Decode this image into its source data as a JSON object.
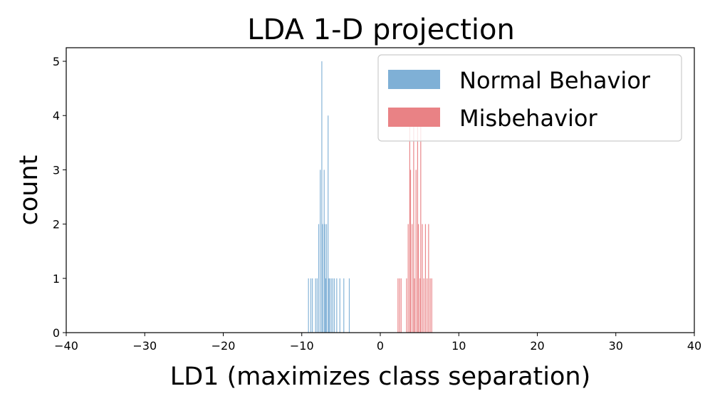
{
  "chart_data": {
    "type": "histogram",
    "title": "LDA 1-D projection",
    "xlabel": "LD1 (maximizes class separation)",
    "ylabel": "count",
    "xlim": [
      -40,
      40
    ],
    "ylim": [
      0,
      5.25
    ],
    "xticks": [
      -40,
      -30,
      -20,
      -10,
      0,
      10,
      20,
      30,
      40
    ],
    "yticks": [
      0,
      1,
      2,
      3,
      4,
      5
    ],
    "bin_width": 0.1,
    "legend_position": "upper right",
    "grid": false,
    "series": [
      {
        "name": "Normal Behavior",
        "color": "#7fb0d6",
        "bars": [
          {
            "x": -9.2,
            "count": 1
          },
          {
            "x": -8.9,
            "count": 1
          },
          {
            "x": -8.7,
            "count": 1
          },
          {
            "x": -8.3,
            "count": 1
          },
          {
            "x": -8.1,
            "count": 1
          },
          {
            "x": -7.9,
            "count": 2
          },
          {
            "x": -7.7,
            "count": 3
          },
          {
            "x": -7.5,
            "count": 5
          },
          {
            "x": -7.4,
            "count": 2
          },
          {
            "x": -7.2,
            "count": 3
          },
          {
            "x": -7.1,
            "count": 2
          },
          {
            "x": -7.0,
            "count": 1
          },
          {
            "x": -6.9,
            "count": 2
          },
          {
            "x": -6.7,
            "count": 4
          },
          {
            "x": -6.6,
            "count": 1
          },
          {
            "x": -6.5,
            "count": 1
          },
          {
            "x": -6.3,
            "count": 1
          },
          {
            "x": -6.1,
            "count": 1
          },
          {
            "x": -5.9,
            "count": 1
          },
          {
            "x": -5.6,
            "count": 1
          },
          {
            "x": -5.2,
            "count": 1
          },
          {
            "x": -4.7,
            "count": 1
          },
          {
            "x": -4.0,
            "count": 1
          }
        ]
      },
      {
        "name": "Misbehavior",
        "color": "#e98285",
        "bars": [
          {
            "x": 2.2,
            "count": 1
          },
          {
            "x": 2.4,
            "count": 1
          },
          {
            "x": 2.6,
            "count": 1
          },
          {
            "x": 3.3,
            "count": 1
          },
          {
            "x": 3.5,
            "count": 2
          },
          {
            "x": 3.7,
            "count": 4
          },
          {
            "x": 3.8,
            "count": 3
          },
          {
            "x": 4.0,
            "count": 2
          },
          {
            "x": 4.2,
            "count": 4
          },
          {
            "x": 4.3,
            "count": 1
          },
          {
            "x": 4.5,
            "count": 3
          },
          {
            "x": 4.7,
            "count": 4
          },
          {
            "x": 4.8,
            "count": 2
          },
          {
            "x": 5.0,
            "count": 1
          },
          {
            "x": 5.1,
            "count": 4
          },
          {
            "x": 5.3,
            "count": 2
          },
          {
            "x": 5.5,
            "count": 1
          },
          {
            "x": 5.7,
            "count": 2
          },
          {
            "x": 5.9,
            "count": 1
          },
          {
            "x": 6.1,
            "count": 2
          },
          {
            "x": 6.3,
            "count": 1
          },
          {
            "x": 6.5,
            "count": 1
          }
        ]
      }
    ]
  }
}
